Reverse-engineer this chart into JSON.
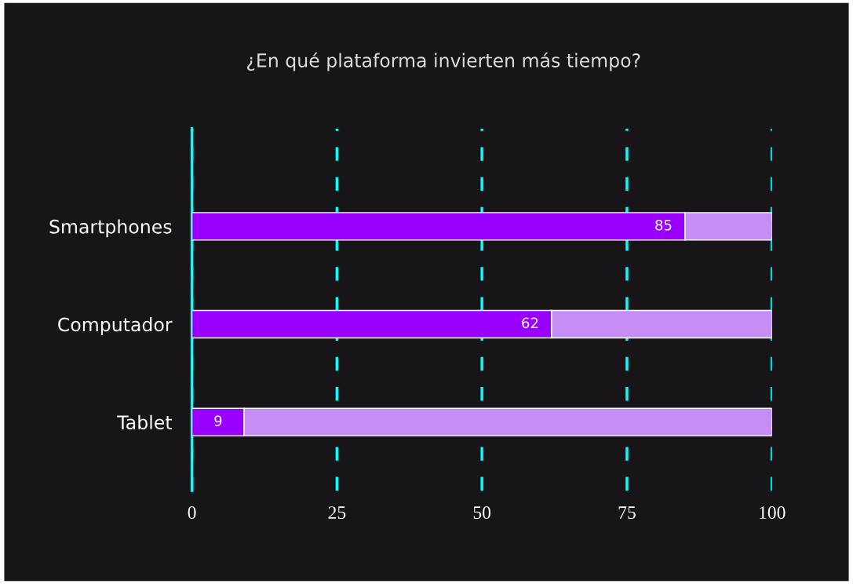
{
  "chart_data": {
    "type": "bar",
    "orientation": "horizontal",
    "stacked": true,
    "title": "¿En qué plataforma invierten más tiempo?",
    "categories": [
      "Smartphones",
      "Computador",
      "Tablet"
    ],
    "series": [
      {
        "color": "#9900ff",
        "values": [
          85,
          62,
          9
        ],
        "value_labels": [
          "85",
          "62",
          "9"
        ]
      },
      {
        "color": "#c68df7",
        "values": [
          15,
          38,
          91
        ]
      }
    ],
    "xlim": [
      0,
      100
    ],
    "xticks": [
      0,
      25,
      50,
      75,
      100
    ],
    "grid": "x",
    "line_style": "dashed"
  }
}
